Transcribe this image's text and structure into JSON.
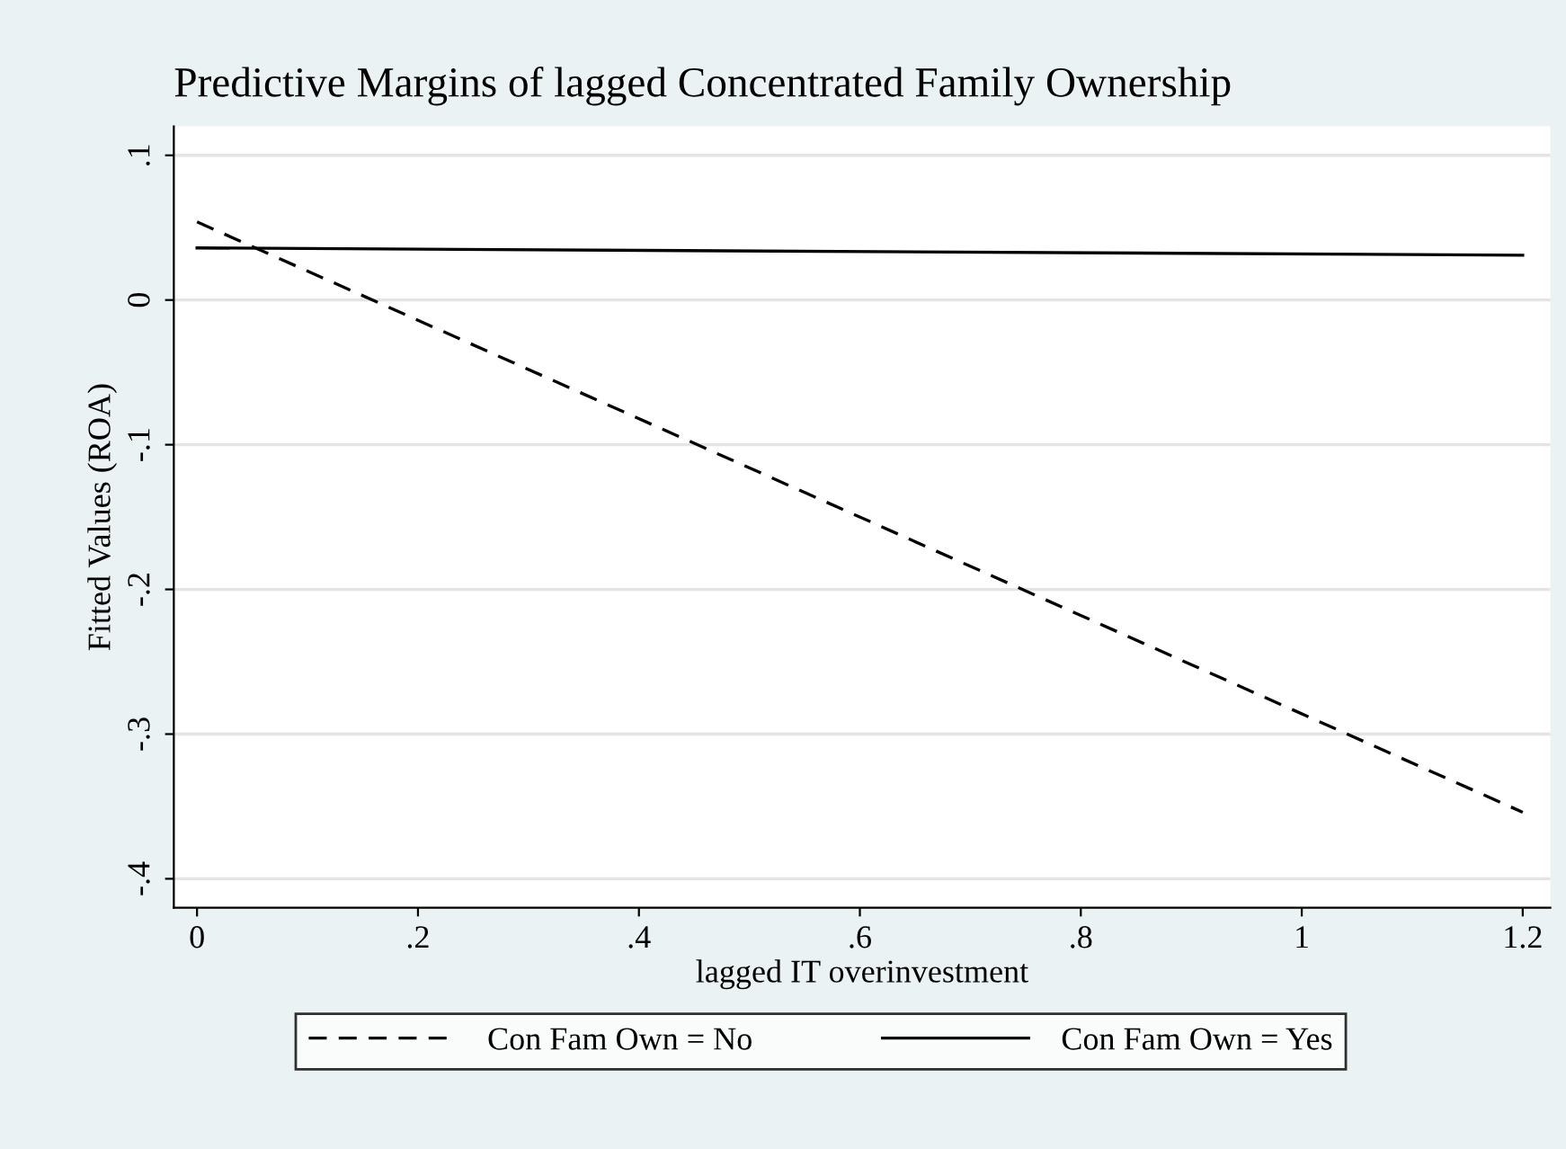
{
  "chart_data": {
    "type": "line",
    "title": "Predictive Margins of lagged Concentrated Family Ownership",
    "xlabel": "lagged IT overinvestment",
    "ylabel": "Fitted Values (ROA)",
    "x": [
      0,
      1.2
    ],
    "series": [
      {
        "name": "Con Fam Own = No",
        "color": "#000000",
        "values": [
          0.054,
          -0.354
        ],
        "line_style": "dashed"
      },
      {
        "name": "Con Fam Own = Yes",
        "color": "#000000",
        "values": [
          0.036,
          0.031
        ],
        "line_style": "solid"
      }
    ],
    "xlim": [
      -0.021,
      1.225
    ],
    "ylim": [
      -0.42,
      0.12
    ],
    "xticks": [
      {
        "value": 0,
        "label": "0"
      },
      {
        "value": 0.2,
        "label": ".2"
      },
      {
        "value": 0.4,
        "label": ".4"
      },
      {
        "value": 0.6,
        "label": ".6"
      },
      {
        "value": 0.8,
        "label": ".8"
      },
      {
        "value": 1,
        "label": "1"
      },
      {
        "value": 1.2,
        "label": "1.2"
      }
    ],
    "yticks": [
      {
        "value": -0.4,
        "label": "-.4"
      },
      {
        "value": -0.3,
        "label": "-.3"
      },
      {
        "value": -0.2,
        "label": "-.2"
      },
      {
        "value": -0.1,
        "label": "-.1"
      },
      {
        "value": 0,
        "label": "0"
      },
      {
        "value": 0.1,
        "label": ".1"
      }
    ],
    "grid": "y",
    "legend": "bottom",
    "marker": "none"
  }
}
